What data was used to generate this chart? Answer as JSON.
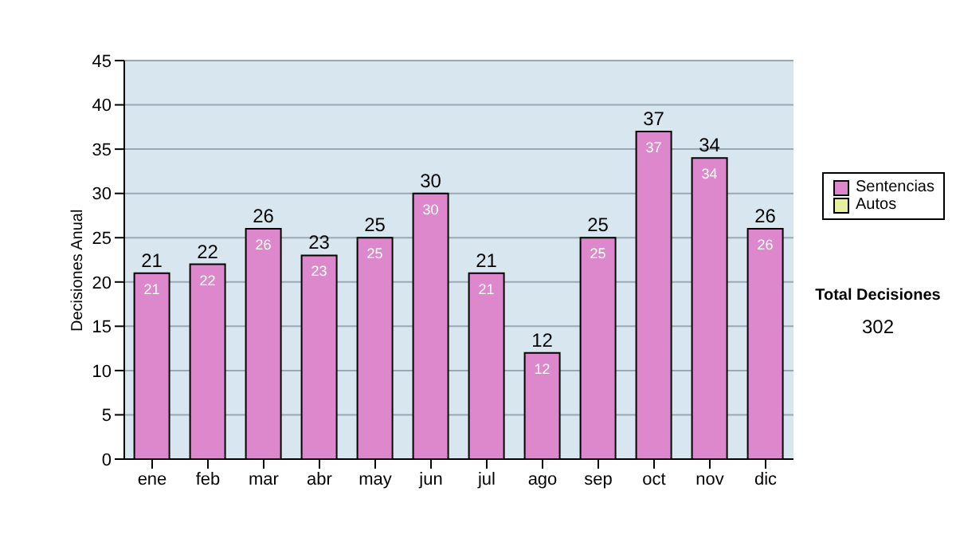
{
  "chart_data": {
    "type": "bar",
    "stacked": true,
    "ylabel": "Decisiones Anual",
    "categories": [
      "ene",
      "feb",
      "mar",
      "abr",
      "may",
      "jun",
      "jul",
      "ago",
      "sep",
      "oct",
      "nov",
      "dic"
    ],
    "series": [
      {
        "name": "Sentencias",
        "color": "#dd88cc",
        "values": [
          21,
          22,
          26,
          23,
          25,
          30,
          21,
          12,
          25,
          37,
          34,
          26
        ],
        "value_labels": [
          "21",
          "22",
          "26",
          "23",
          "25",
          "30",
          "21",
          "12",
          "25",
          "37",
          "34",
          "26"
        ]
      },
      {
        "name": "Autos",
        "color": "#e6f0a0",
        "values": [
          0,
          0,
          0,
          0,
          0,
          0,
          0,
          0,
          0,
          0,
          0,
          0
        ]
      }
    ],
    "totals": [
      "21",
      "22",
      "26",
      "23",
      "25",
      "30",
      "21",
      "12",
      "25",
      "37",
      "34",
      "26"
    ],
    "ylim": [
      0,
      45
    ],
    "yticks": [
      0,
      5,
      10,
      15,
      20,
      25,
      30,
      35,
      40,
      45
    ],
    "grid": "y",
    "legend": "right",
    "annotations": [
      "Total Decisiones",
      "302"
    ]
  }
}
